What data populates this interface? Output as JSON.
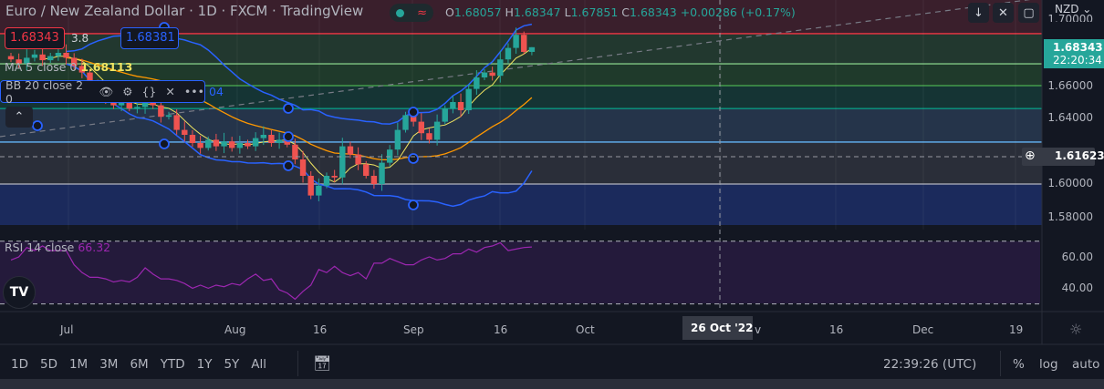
{
  "header": {
    "title": "Euro / New Zealand Dollar · 1D · FXCM · TradingView",
    "o_label": "O",
    "o": "1.68057",
    "h_label": "H",
    "h": "1.68347",
    "l_label": "L",
    "l": "1.67851",
    "c_label": "C",
    "c": "1.68343",
    "change": "+0.00286 (+0.17%)",
    "status_icon": "≈"
  },
  "legend": {
    "sell": "1.68343",
    "spread": "3.8",
    "buy": "1.68381",
    "ma_label": "MA 5 close 0",
    "ma_value": "1.68113",
    "bb_label": "BB 20 close 2 0",
    "bb_partial": "04",
    "rsi_label": "RSI 14 close",
    "rsi_value": "66.32"
  },
  "price_axis": {
    "currency": "NZD",
    "labels": [
      "1.70000",
      "1.66000",
      "1.64000",
      "1.60000",
      "1.58000"
    ],
    "last_price": "1.68343",
    "countdown": "22:20:34",
    "crosshair_price": "1.61623"
  },
  "rsi_axis": {
    "labels": [
      "60.00",
      "40.00"
    ]
  },
  "time_axis": {
    "labels": [
      "Jul",
      "Aug",
      "16",
      "Sep",
      "16",
      "Oct",
      "v",
      "16",
      "Dec",
      "19"
    ],
    "crosshair_date": "26 Oct '22"
  },
  "bottom": {
    "ranges": [
      "1D",
      "5D",
      "1M",
      "3M",
      "6M",
      "YTD",
      "1Y",
      "5Y",
      "All"
    ],
    "clock": "22:39:26 (UTC)",
    "percent": "%",
    "log": "log",
    "auto": "auto"
  },
  "colors": {
    "up": "#26a69a",
    "down": "#ef5350",
    "ma": "#f0e461",
    "bb_band": "#2962ff",
    "bb_basis": "#ff9800",
    "rsi": "#9c27b0"
  },
  "chart_data": {
    "type": "candlestick",
    "symbol": "EURNZD",
    "interval": "1D",
    "ylim": [
      1.575,
      1.705
    ],
    "fib_levels": [
      1.6917,
      1.6733,
      1.66,
      1.646,
      1.6256,
      1.6
    ],
    "closes": [
      1.676,
      1.6735,
      1.677,
      1.679,
      1.6755,
      1.678,
      1.68,
      1.677,
      1.672,
      1.668,
      1.66,
      1.656,
      1.653,
      1.648,
      1.65,
      1.646,
      1.647,
      1.653,
      1.648,
      1.641,
      1.642,
      1.633,
      1.63,
      1.625,
      1.622,
      1.627,
      1.623,
      1.626,
      1.622,
      1.625,
      1.623,
      1.628,
      1.63,
      1.625,
      1.627,
      1.624,
      1.615,
      1.605,
      1.593,
      1.599,
      1.605,
      1.604,
      1.623,
      1.618,
      1.612,
      1.605,
      1.6,
      1.613,
      1.621,
      1.633,
      1.642,
      1.638,
      1.631,
      1.627,
      1.638,
      1.646,
      1.65,
      1.645,
      1.658,
      1.665,
      1.668,
      1.666,
      1.676,
      1.683,
      1.691,
      1.68057,
      1.68343
    ],
    "last": {
      "open": 1.68057,
      "high": 1.68347,
      "low": 1.67851,
      "close": 1.68343
    },
    "rsi": [
      58,
      60,
      66,
      64,
      67,
      64,
      64,
      64,
      55,
      50,
      47,
      47,
      46,
      44,
      45,
      44,
      47,
      53,
      49,
      46,
      46,
      45,
      43,
      40,
      42,
      40,
      42,
      41,
      43,
      42,
      46,
      49,
      45,
      46,
      39,
      37,
      33,
      38,
      42,
      52,
      50,
      54,
      50,
      48,
      50,
      46,
      56,
      56,
      59,
      57,
      55,
      55,
      58,
      60,
      58,
      59,
      62,
      62,
      65,
      63,
      66,
      67,
      69,
      64,
      65,
      66,
      66.32
    ],
    "rsi_levels": [
      70,
      30
    ]
  }
}
